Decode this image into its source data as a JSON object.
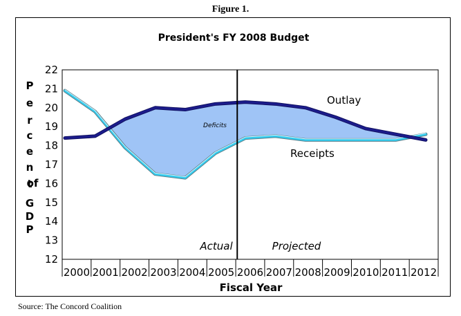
{
  "figure_label": "Figure 1.",
  "source": "Source: The Concord Coalition",
  "chart_data": {
    "type": "line",
    "title": "President's FY 2008 Budget",
    "xlabel": "Fiscal Year",
    "ylabel_letters": [
      "P",
      "e",
      "r",
      "c",
      "e",
      "n",
      "t",
      "of",
      "G",
      "D",
      "P"
    ],
    "ylim": [
      12,
      22
    ],
    "yticks": [
      12,
      13,
      14,
      15,
      16,
      17,
      18,
      19,
      20,
      21,
      22
    ],
    "categories": [
      "2000",
      "2001",
      "2002",
      "2003",
      "2004",
      "2005",
      "2006",
      "2007",
      "2008",
      "2009",
      "2010",
      "2011",
      "2012"
    ],
    "series": [
      {
        "name": "Outlay",
        "color": "#1c1c8c",
        "values": [
          18.4,
          18.5,
          19.4,
          20.0,
          19.9,
          20.2,
          20.3,
          20.2,
          20.0,
          19.5,
          18.9,
          18.6,
          18.3
        ]
      },
      {
        "name": "Receipts",
        "color": "#33ccee",
        "values": [
          20.9,
          19.8,
          17.9,
          16.5,
          16.3,
          17.6,
          18.4,
          18.5,
          18.3,
          18.3,
          18.3,
          18.3,
          18.6
        ]
      }
    ],
    "fill_label": "Deficits",
    "fill_color": "#9fc4f6",
    "divider_at": "2006",
    "region_labels": {
      "left": "Actual",
      "right": "Projected"
    }
  }
}
